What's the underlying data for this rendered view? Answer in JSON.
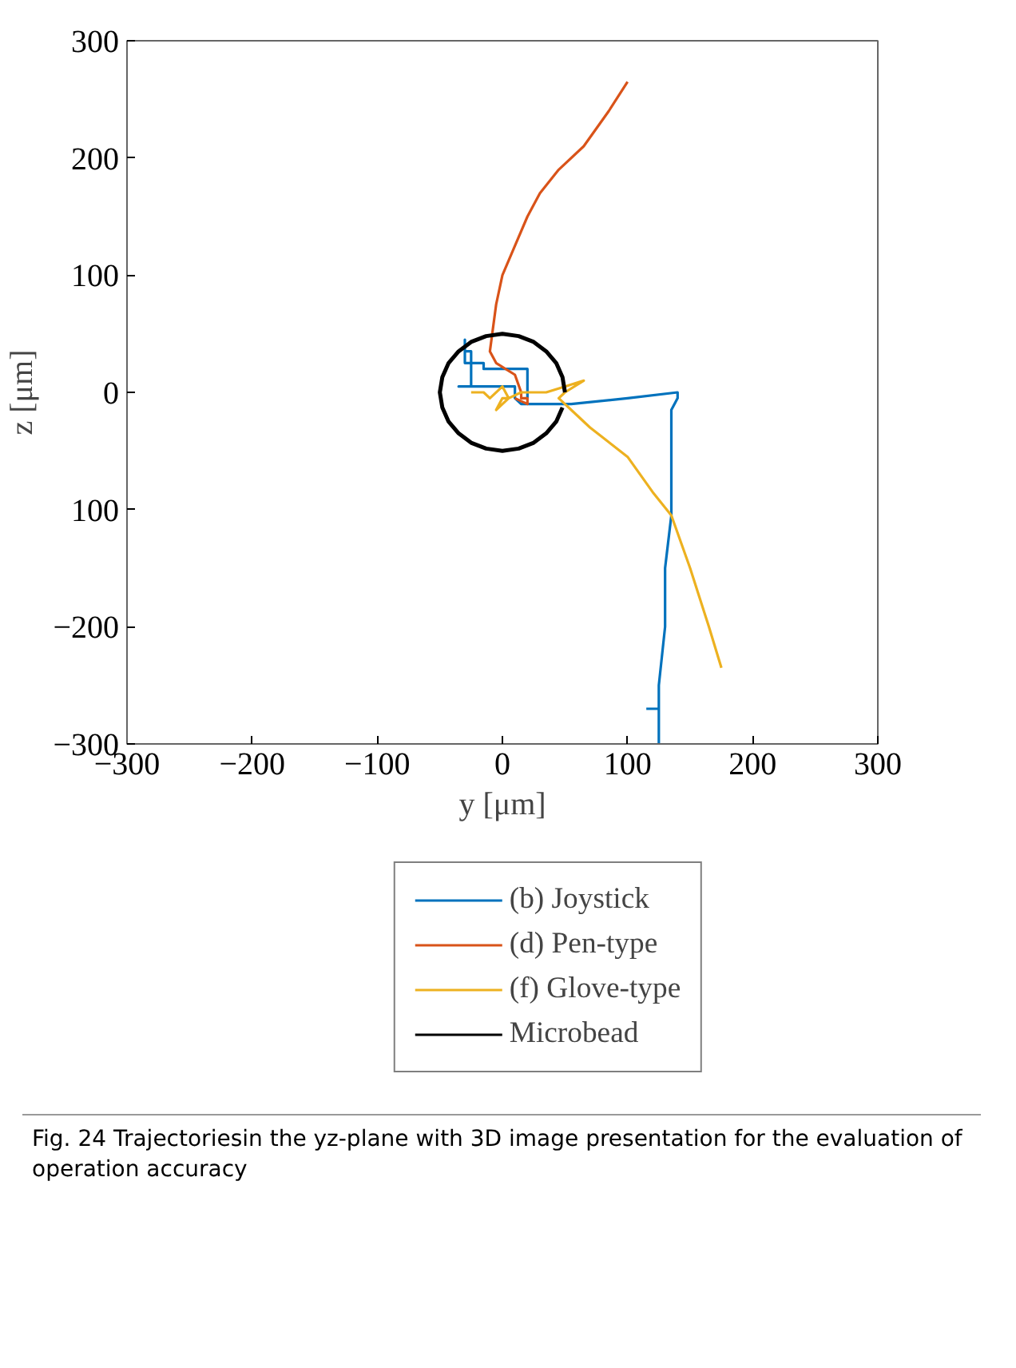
{
  "chart_data": {
    "type": "line",
    "xlabel": "y [μm]",
    "ylabel": "z [μm]",
    "xlim": [
      -300,
      300
    ],
    "ylim": [
      -300,
      300
    ],
    "xticks": [
      -300,
      -200,
      -100,
      0,
      100,
      200,
      300
    ],
    "yticks": [
      -300,
      -200,
      {
        "value": -100,
        "label": "100"
      },
      0,
      100,
      200,
      300
    ],
    "grid": false,
    "legend": "bottom",
    "marker": "none",
    "line_style": "solid",
    "annotations": [
      "Fig. 24 Trajectoriesin the yz-plane with 3D image presentation for the evaluation of operation accuracy"
    ],
    "series": [
      {
        "name": "(b) Joystick",
        "color": "#0072bd",
        "x": [
          115,
          125,
          125,
          125,
          130,
          130,
          135,
          135,
          135,
          135,
          140,
          140,
          100,
          55,
          40,
          15,
          10,
          10,
          -35,
          -25,
          -25,
          -30,
          -30,
          -30,
          -30,
          -15,
          -15,
          20,
          20
        ],
        "values": [
          -270,
          -270,
          -300,
          -250,
          -200,
          -150,
          -105,
          -60,
          -30,
          -15,
          -5,
          0,
          -5,
          -10,
          -10,
          -10,
          -5,
          5,
          5,
          5,
          35,
          35,
          45,
          45,
          25,
          25,
          20,
          20,
          -5
        ]
      },
      {
        "name": "(d) Pen-type",
        "color": "#d95319",
        "x": [
          100,
          85,
          65,
          45,
          30,
          20,
          10,
          0,
          -5,
          -10,
          -5,
          10,
          15,
          15,
          20,
          20,
          10
        ],
        "values": [
          265,
          240,
          210,
          190,
          170,
          150,
          125,
          100,
          75,
          35,
          25,
          15,
          0,
          -5,
          -5,
          -10,
          -5
        ]
      },
      {
        "name": "(f) Glove-type",
        "color": "#edb120",
        "x": [
          -25,
          -15,
          -10,
          0,
          5,
          -5,
          0,
          5,
          15,
          35,
          50,
          65,
          50,
          45,
          55,
          70,
          100,
          120,
          135,
          150,
          165,
          175
        ],
        "values": [
          0,
          0,
          -5,
          5,
          -5,
          -15,
          -5,
          -5,
          0,
          0,
          5,
          10,
          0,
          -5,
          -15,
          -30,
          -55,
          -85,
          -105,
          -150,
          -200,
          -235
        ]
      },
      {
        "name": "Microbead",
        "color": "#000000",
        "x": [
          50,
          48,
          43,
          35,
          25,
          13,
          0,
          -13,
          -25,
          -35,
          -43,
          -48,
          -50,
          -48,
          -43,
          -35,
          -25,
          -13,
          0,
          13,
          25,
          35,
          43,
          48
        ],
        "values": [
          0,
          13,
          25,
          35,
          43,
          48,
          50,
          48,
          43,
          35,
          25,
          13,
          0,
          -13,
          -25,
          -35,
          -43,
          -48,
          -50,
          -48,
          -43,
          -35,
          -25,
          -13
        ]
      }
    ]
  }
}
